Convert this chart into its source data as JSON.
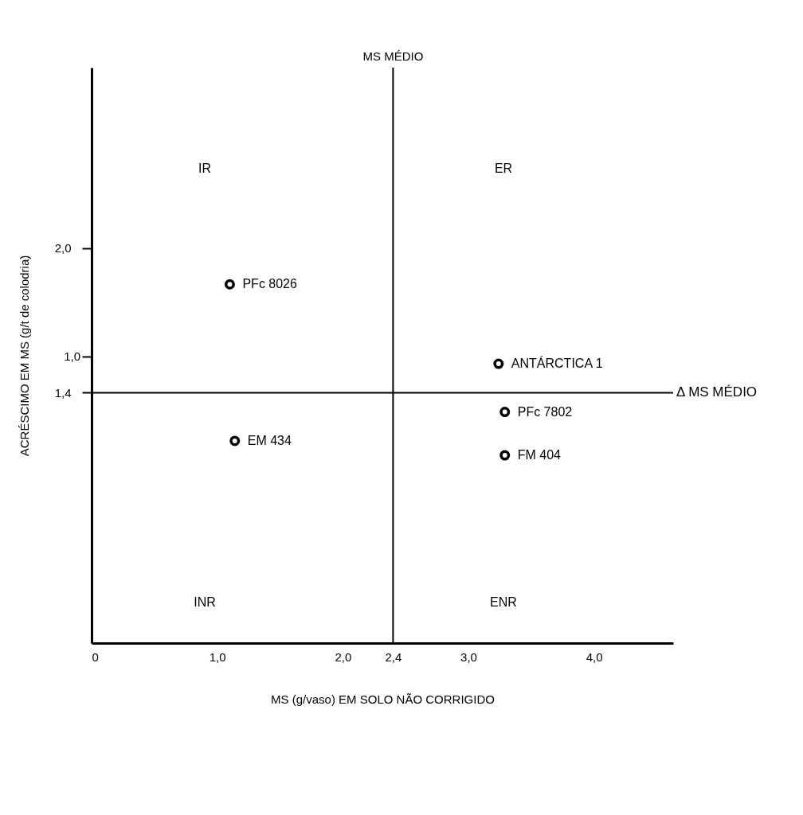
{
  "chart_data": {
    "type": "scatter",
    "xlabel": "MS (g/vaso) EM SOLO NÃO CORRIGIDO",
    "ylabel": "ACRÉSCIMO EM MS (g/t de colodria)",
    "xlim": [
      0,
      4.63
    ],
    "ylim": [
      0.36,
      2.75
    ],
    "xticks": [
      {
        "value": 0,
        "label": "0"
      },
      {
        "value": 1,
        "label": "1,0"
      },
      {
        "value": 2,
        "label": "2,0"
      },
      {
        "value": 2.4,
        "label": "2,4"
      },
      {
        "value": 3,
        "label": "3,0"
      },
      {
        "value": 4,
        "label": "4,0"
      }
    ],
    "yticks": [
      {
        "value": 2,
        "label": "2,0"
      },
      {
        "value": 1.55,
        "label": null
      },
      {
        "value": 1.4,
        "label": "1,4"
      }
    ],
    "series": [
      {
        "name": "PFc 8026",
        "color": "#000000",
        "x": [
          1.1
        ],
        "values": [
          1.85
        ]
      },
      {
        "name": "ANTÁRCTICA 1",
        "color": "#000000",
        "x": [
          3.24
        ],
        "values": [
          1.52
        ]
      },
      {
        "name": "PFc 7802",
        "color": "#000000",
        "x": [
          3.29
        ],
        "values": [
          1.32
        ]
      },
      {
        "name": "EM 434",
        "color": "#000000",
        "x": [
          1.14
        ],
        "values": [
          1.2
        ]
      },
      {
        "name": "FM 404",
        "color": "#000000",
        "x": [
          3.29
        ],
        "values": [
          1.14
        ]
      }
    ],
    "marker": "circle",
    "grid": false,
    "ref_lines": [
      {
        "axis": "x",
        "value": 2.4,
        "label": "MS MÉDIO"
      },
      {
        "axis": "y",
        "value": 1.4,
        "label": "Δ MS MÉDIO"
      }
    ],
    "annotations": [
      "IR",
      "ER",
      "INR",
      "ENR",
      "1,0"
    ]
  }
}
